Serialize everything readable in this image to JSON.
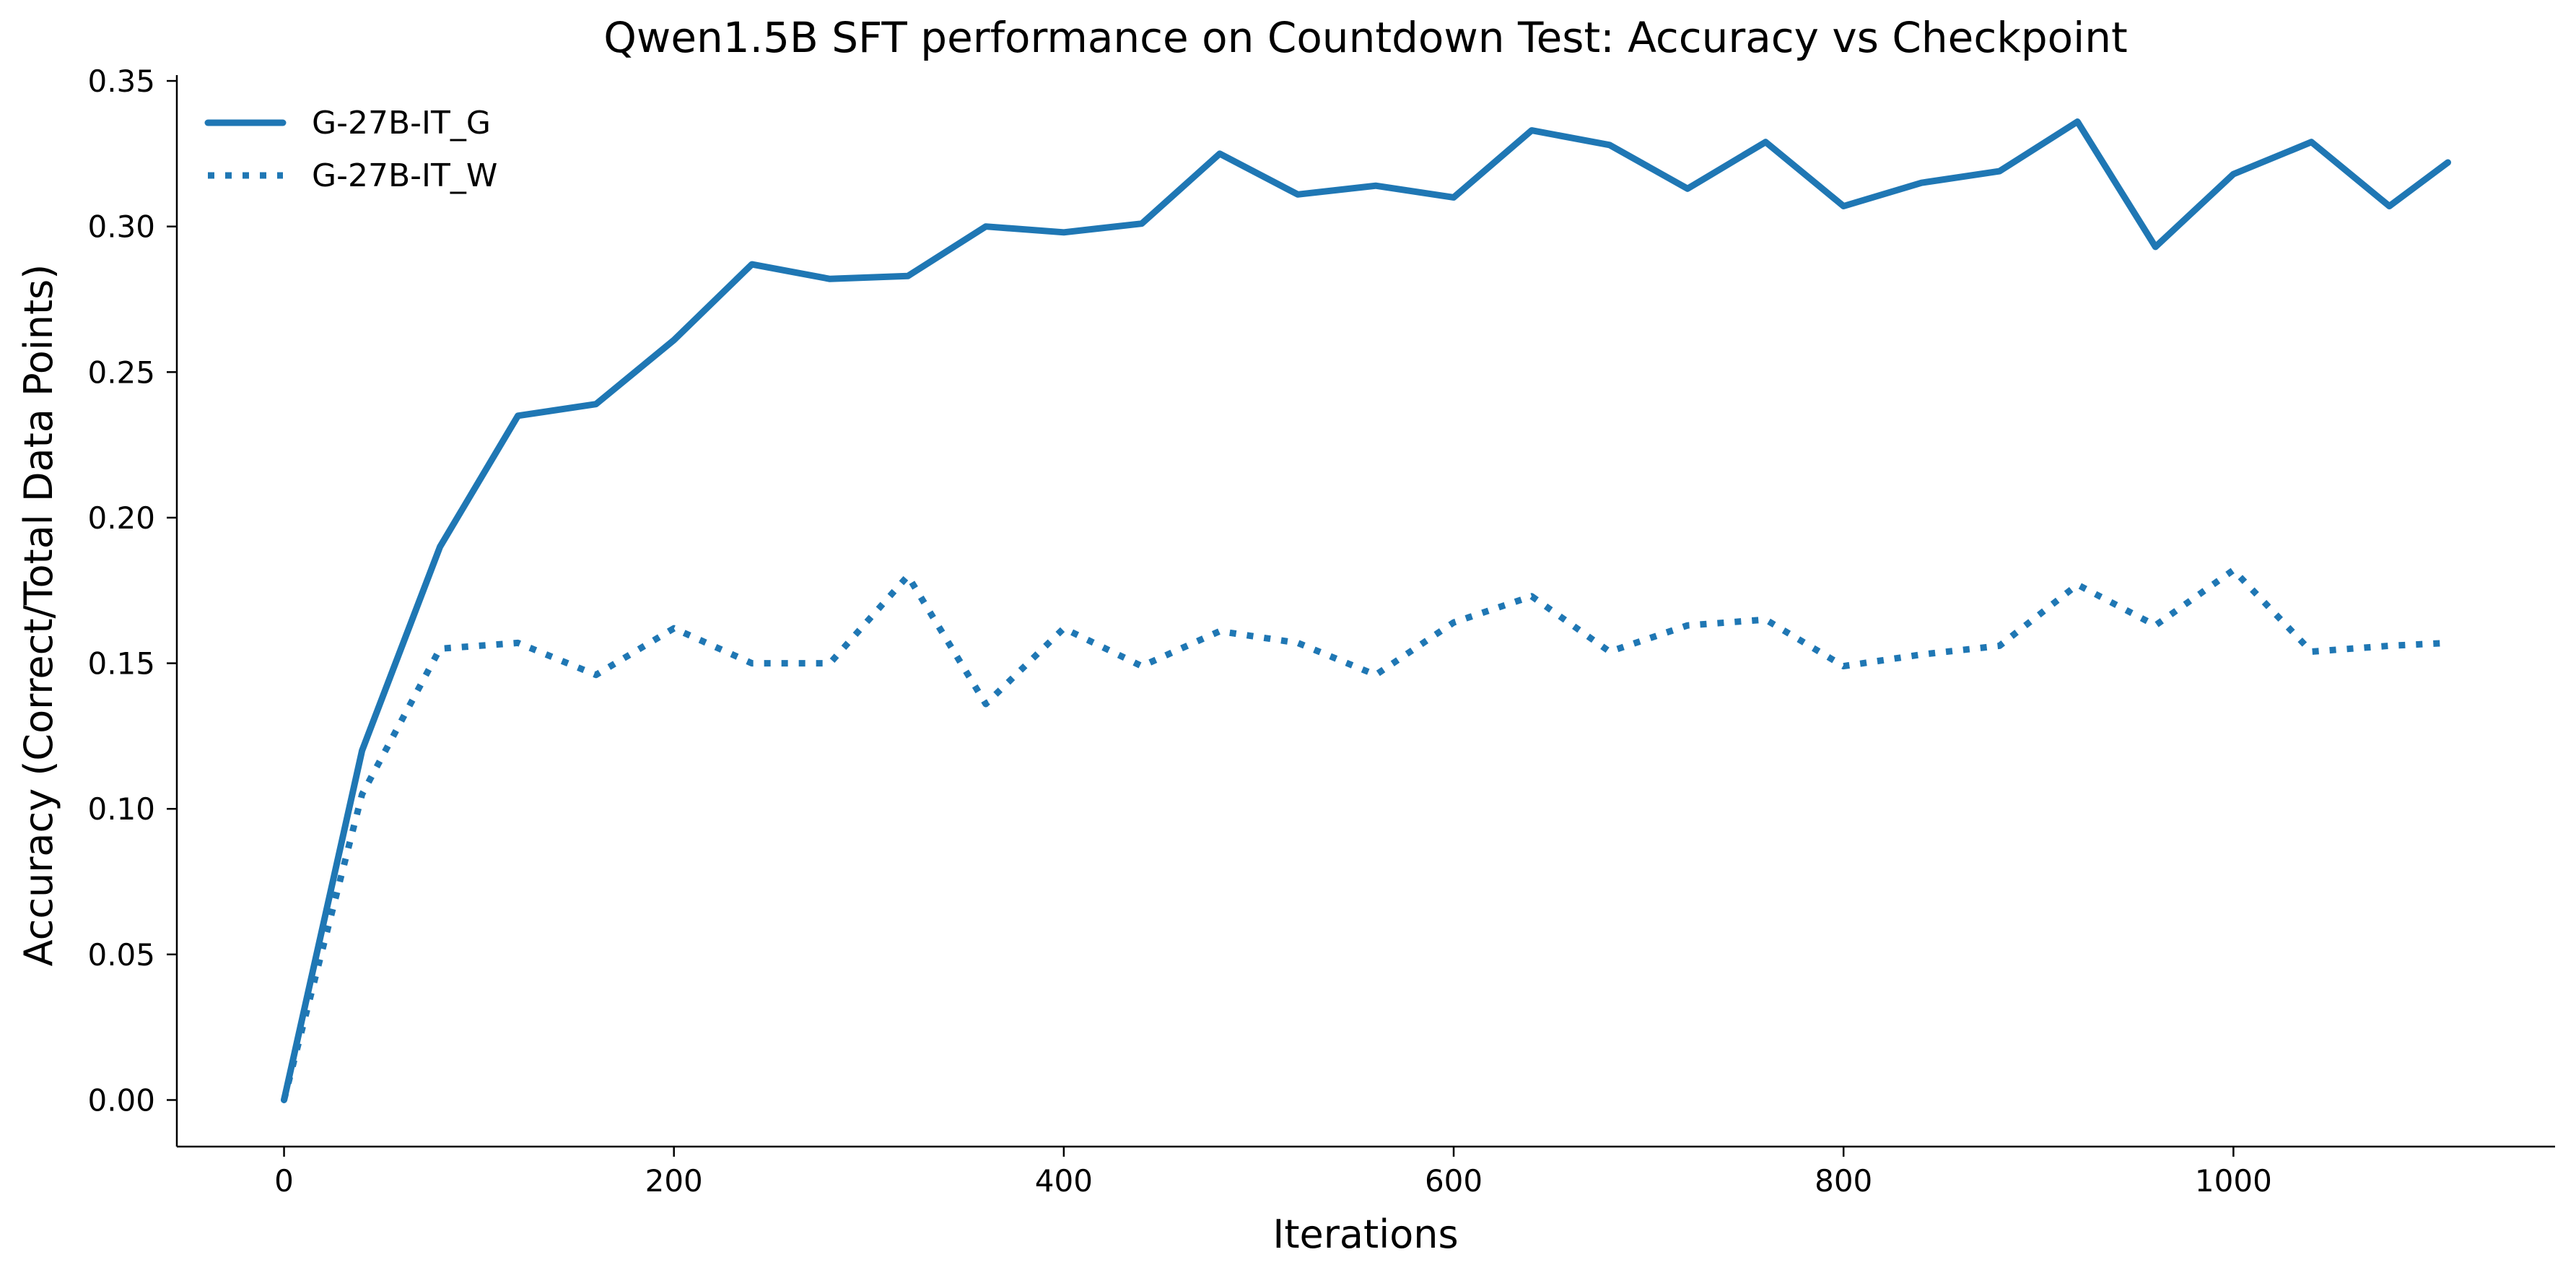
{
  "chart_data": {
    "type": "line",
    "title": "Qwen1.5B SFT performance on Countdown Test: Accuracy vs Checkpoint",
    "xlabel": "Iterations",
    "ylabel": "Accuracy (Correct/Total Data Points)",
    "xlim": [
      -55,
      1165
    ],
    "ylim": [
      -0.016,
      0.352
    ],
    "xticks": [
      0,
      200,
      400,
      600,
      800,
      1000
    ],
    "yticks": [
      0.0,
      0.05,
      0.1,
      0.15,
      0.2,
      0.25,
      0.3,
      0.35
    ],
    "ytick_labels": [
      "0.00",
      "0.05",
      "0.10",
      "0.15",
      "0.20",
      "0.25",
      "0.30",
      "0.35"
    ],
    "grid": false,
    "legend": "top-left",
    "color": "#1f77b4",
    "x": [
      0,
      40,
      80,
      120,
      160,
      200,
      240,
      280,
      320,
      360,
      400,
      440,
      480,
      520,
      560,
      600,
      640,
      680,
      720,
      760,
      800,
      840,
      880,
      920,
      960,
      1000,
      1040,
      1080,
      1110
    ],
    "series": [
      {
        "name": "G-27B-IT_G",
        "style": "solid",
        "values": [
          0.0,
          0.12,
          0.19,
          0.235,
          0.239,
          0.261,
          0.287,
          0.282,
          0.283,
          0.3,
          0.298,
          0.301,
          0.325,
          0.311,
          0.314,
          0.31,
          0.333,
          0.328,
          0.313,
          0.329,
          0.307,
          0.315,
          0.319,
          0.336,
          0.293,
          0.318,
          0.329,
          0.307,
          0.322
        ]
      },
      {
        "name": "G-27B-IT_W",
        "style": "dotted",
        "values": [
          0.0,
          0.105,
          0.155,
          0.157,
          0.146,
          0.162,
          0.15,
          0.15,
          0.18,
          0.136,
          0.162,
          0.149,
          0.161,
          0.157,
          0.146,
          0.164,
          0.173,
          0.154,
          0.163,
          0.165,
          0.149,
          0.153,
          0.156,
          0.177,
          0.163,
          0.182,
          0.154,
          0.156,
          0.157
        ]
      }
    ]
  }
}
